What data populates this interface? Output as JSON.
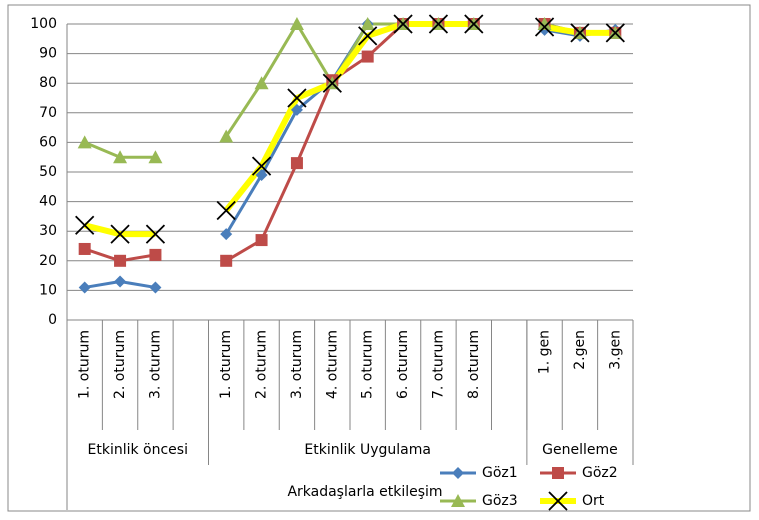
{
  "chart_data": {
    "type": "line",
    "categories": [
      "1. oturum",
      "2. oturum",
      "3. oturum",
      null,
      "1. oturum",
      "2. oturum",
      "3. oturum",
      "4. oturum",
      "5. oturum",
      "6. oturum",
      "7. oturum",
      "8. oturum",
      null,
      "1. gen",
      "2.gen",
      "3.gen"
    ],
    "groups": [
      {
        "label": "Etkinlik öncesi",
        "span": 4
      },
      {
        "label": "Etkinlik Uygulama",
        "span": 9
      },
      {
        "label": "Genelleme",
        "span": 3
      }
    ],
    "x_label": "Arkadaşlarla etkileşim",
    "series": [
      {
        "name": "Göz1",
        "color": "#4a7ebb",
        "marker": "diamond",
        "values": [
          11,
          13,
          11,
          null,
          29,
          49,
          71,
          81,
          100,
          100,
          100,
          100,
          null,
          98,
          96,
          98
        ]
      },
      {
        "name": "Göz2",
        "color": "#be4b48",
        "marker": "square",
        "values": [
          24,
          20,
          22,
          null,
          20,
          27,
          53,
          81,
          89,
          100,
          100,
          100,
          null,
          100,
          97,
          97
        ]
      },
      {
        "name": "Göz3",
        "color": "#98b954",
        "marker": "triangle",
        "values": [
          60,
          55,
          55,
          null,
          62,
          80,
          100,
          80,
          100,
          100,
          100,
          100,
          null,
          100,
          97,
          97
        ]
      },
      {
        "name": "Ort",
        "color": "#ffff00",
        "marker": "x",
        "values": [
          32,
          29,
          29,
          null,
          37,
          52,
          75,
          80,
          96,
          100,
          100,
          100,
          null,
          99,
          97,
          97
        ]
      }
    ],
    "ylim": [
      0,
      100
    ],
    "yticks": [
      0,
      10,
      20,
      30,
      40,
      50,
      60,
      70,
      80,
      90,
      100
    ],
    "grid": true,
    "legend": "bottom-right"
  }
}
